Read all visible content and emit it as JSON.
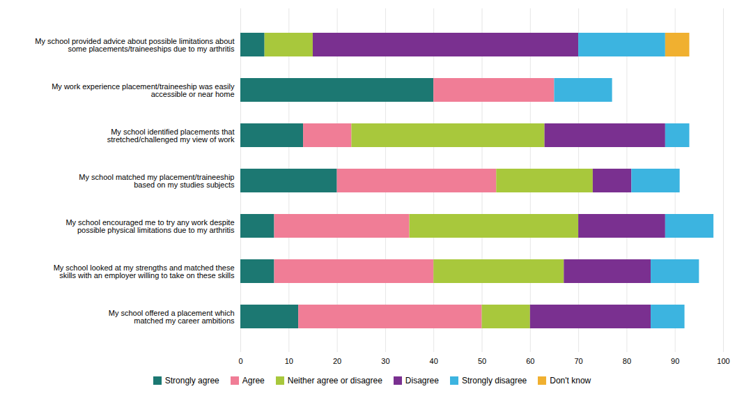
{
  "chart_data": {
    "type": "bar",
    "orientation": "horizontal",
    "stacked": true,
    "categories": [
      "My school provided advice about possible limitations about\nsome placements/traineeships due to my arthritis",
      "My work experience placement/traineeship was easily\naccessible or near home",
      "My school identified placements that\nstretched/challenged my view of work",
      "My school matched my placement/traineeship\nbased on my studies subjects",
      "My school encouraged me to try any work despite\npossible physical limitations due to my arthritis",
      "My school looked at my strengths and matched these\nskills with an employer willing to take on these skills",
      "My school offered a placement which\nmatched my career ambitions"
    ],
    "series": [
      {
        "name": "Strongly agree",
        "color": "#1c7872",
        "values": [
          5,
          40,
          13,
          20,
          7,
          7,
          12
        ]
      },
      {
        "name": "Agree",
        "color": "#f07d96",
        "values": [
          0,
          25,
          10,
          33,
          28,
          33,
          38
        ]
      },
      {
        "name": "Neither agree or disagree",
        "color": "#a8c83c",
        "values": [
          10,
          0,
          40,
          20,
          35,
          27,
          10
        ]
      },
      {
        "name": "Disagree",
        "color": "#7a3090",
        "values": [
          55,
          0,
          25,
          8,
          18,
          18,
          25
        ]
      },
      {
        "name": "Strongly disagree",
        "color": "#3cb4e0",
        "values": [
          18,
          12,
          5,
          10,
          10,
          10,
          7
        ]
      },
      {
        "name": "Don't know",
        "color": "#f0b030",
        "values": [
          5,
          0,
          0,
          0,
          0,
          0,
          0
        ]
      }
    ],
    "xlim": [
      0,
      100
    ],
    "xticks": [
      0,
      10,
      20,
      30,
      40,
      50,
      60,
      70,
      80,
      90,
      100
    ],
    "grid": true,
    "legend": "bottom"
  }
}
